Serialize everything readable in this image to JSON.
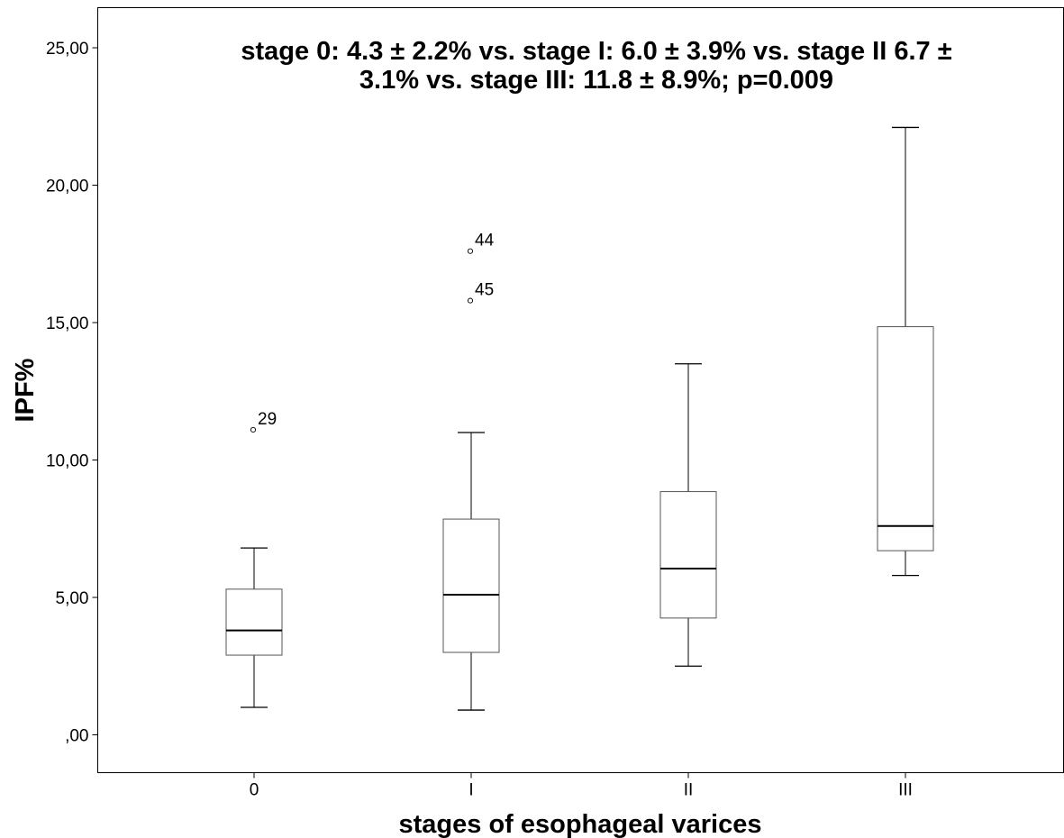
{
  "chart_data": {
    "type": "boxplot",
    "title_lines": [
      "stage 0: 4.3 ± 2.2% vs. stage I: 6.0 ± 3.9% vs. stage II 6.7 ±",
      "3.1% vs. stage III: 11.8 ± 8.9%; p=0.009"
    ],
    "xlabel": "stages of esophageal varices",
    "ylabel": "IPF%",
    "ylim": [
      -1.4,
      26.4
    ],
    "yticks": [
      0,
      5,
      10,
      15,
      20,
      25
    ],
    "ytick_labels": [
      ",00",
      "5,00",
      "10,00",
      "15,00",
      "20,00",
      "25,00"
    ],
    "categories": [
      "0",
      "I",
      "II",
      "III"
    ],
    "boxes": [
      {
        "category": "0",
        "whisker_low": 1.0,
        "q1": 2.9,
        "median": 3.8,
        "q3": 5.3,
        "whisker_high": 6.8,
        "outliers": [
          {
            "value": 11.1,
            "label": "29"
          }
        ]
      },
      {
        "category": "I",
        "whisker_low": 0.9,
        "q1": 3.0,
        "median": 5.1,
        "q3": 7.85,
        "whisker_high": 11.0,
        "outliers": [
          {
            "value": 17.6,
            "label": "44"
          },
          {
            "value": 15.8,
            "label": "45"
          }
        ]
      },
      {
        "category": "II",
        "whisker_low": 2.5,
        "q1": 4.25,
        "median": 6.05,
        "q3": 8.85,
        "whisker_high": 13.5,
        "outliers": []
      },
      {
        "category": "III",
        "whisker_low": 5.8,
        "q1": 6.7,
        "median": 7.6,
        "q3": 14.85,
        "whisker_high": 22.1,
        "outliers": []
      }
    ],
    "grid": false,
    "legend": "none"
  }
}
